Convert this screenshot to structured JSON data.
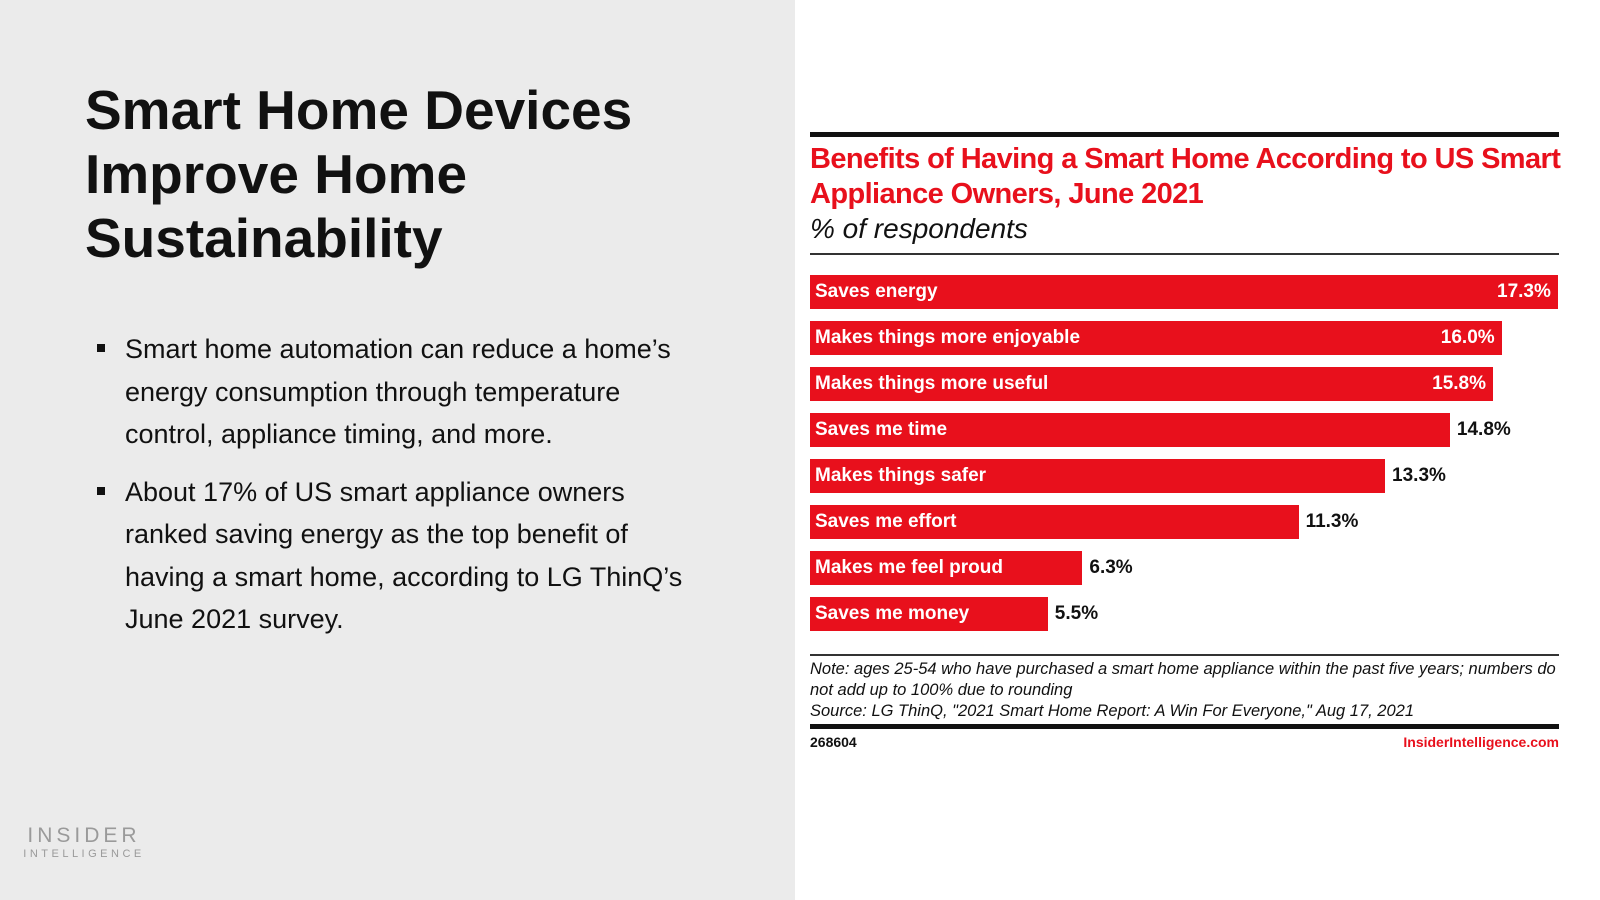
{
  "slide": {
    "title": "Smart Home Devices Improve Home Sustainability",
    "bullets": [
      "Smart home automation can reduce a home’s energy consumption through temperature control, appliance timing, and more.",
      "About 17% of US smart appliance owners ranked saving energy as the top benefit of having a smart home, according to LG ThinQ’s June 2021 survey."
    ],
    "logo": {
      "line1": "INSIDER",
      "line2": "INTELLIGENCE"
    }
  },
  "chart_data": {
    "type": "bar",
    "orientation": "horizontal",
    "title": "Benefits of Having a Smart Home According to US Smart Appliance Owners, June 2021",
    "subtitle": "% of respondents",
    "categories": [
      "Saves energy",
      "Makes things more enjoyable",
      "Makes things more useful",
      "Saves me time",
      "Makes things safer",
      "Saves me effort",
      "Makes me feel proud",
      "Saves me money"
    ],
    "values": [
      17.3,
      16.0,
      15.8,
      14.8,
      13.3,
      11.3,
      6.3,
      5.5
    ],
    "value_labels": [
      "17.3%",
      "16.0%",
      "15.8%",
      "14.8%",
      "13.3%",
      "11.3%",
      "6.3%",
      "5.5%"
    ],
    "bar_color": "#e8101c",
    "grid": false,
    "note": "Note: ages 25-54 who have purchased a smart home appliance within the past five years; numbers do not add up to 100% due to rounding",
    "source": "Source: LG ThinQ, \"2021 Smart Home Report: A Win For Everyone,\" Aug 17, 2021",
    "chart_id": "268604",
    "site": "InsiderIntelligence.com"
  }
}
